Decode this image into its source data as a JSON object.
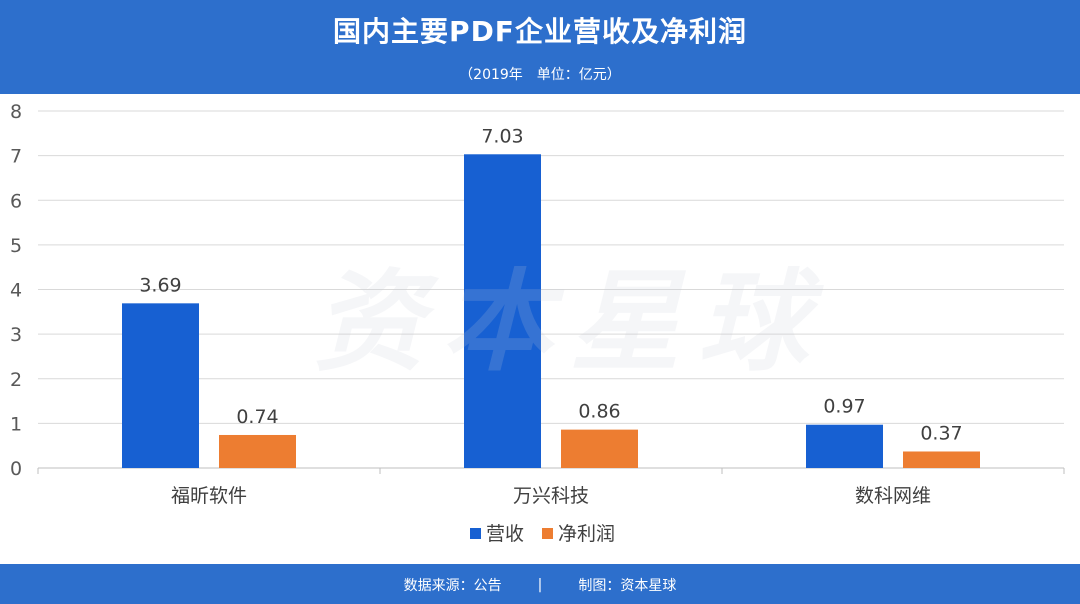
{
  "header": {
    "title": "国内主要PDF企业营收及净利润",
    "subtitle": "（2019年　单位：亿元）"
  },
  "watermark": "资本星球",
  "footer": {
    "source": "数据来源：公告",
    "separator": "|",
    "maker": "制图：资本星球"
  },
  "colors": {
    "background": "#2D6FCC",
    "revenue": "#1760D2",
    "profit": "#ED7D31",
    "grid": "#D9D9D9"
  },
  "chart_data": {
    "type": "bar",
    "categories": [
      "福昕软件",
      "万兴科技",
      "数科网维"
    ],
    "series": [
      {
        "name": "营收",
        "values": [
          3.69,
          7.03,
          0.97
        ]
      },
      {
        "name": "净利润",
        "values": [
          0.74,
          0.86,
          0.37
        ]
      }
    ],
    "ylim": [
      0,
      8
    ],
    "yticks": [
      "0",
      "1",
      "2",
      "3",
      "4",
      "5",
      "6",
      "7",
      "8"
    ],
    "grid": true,
    "legend": "bottom"
  }
}
